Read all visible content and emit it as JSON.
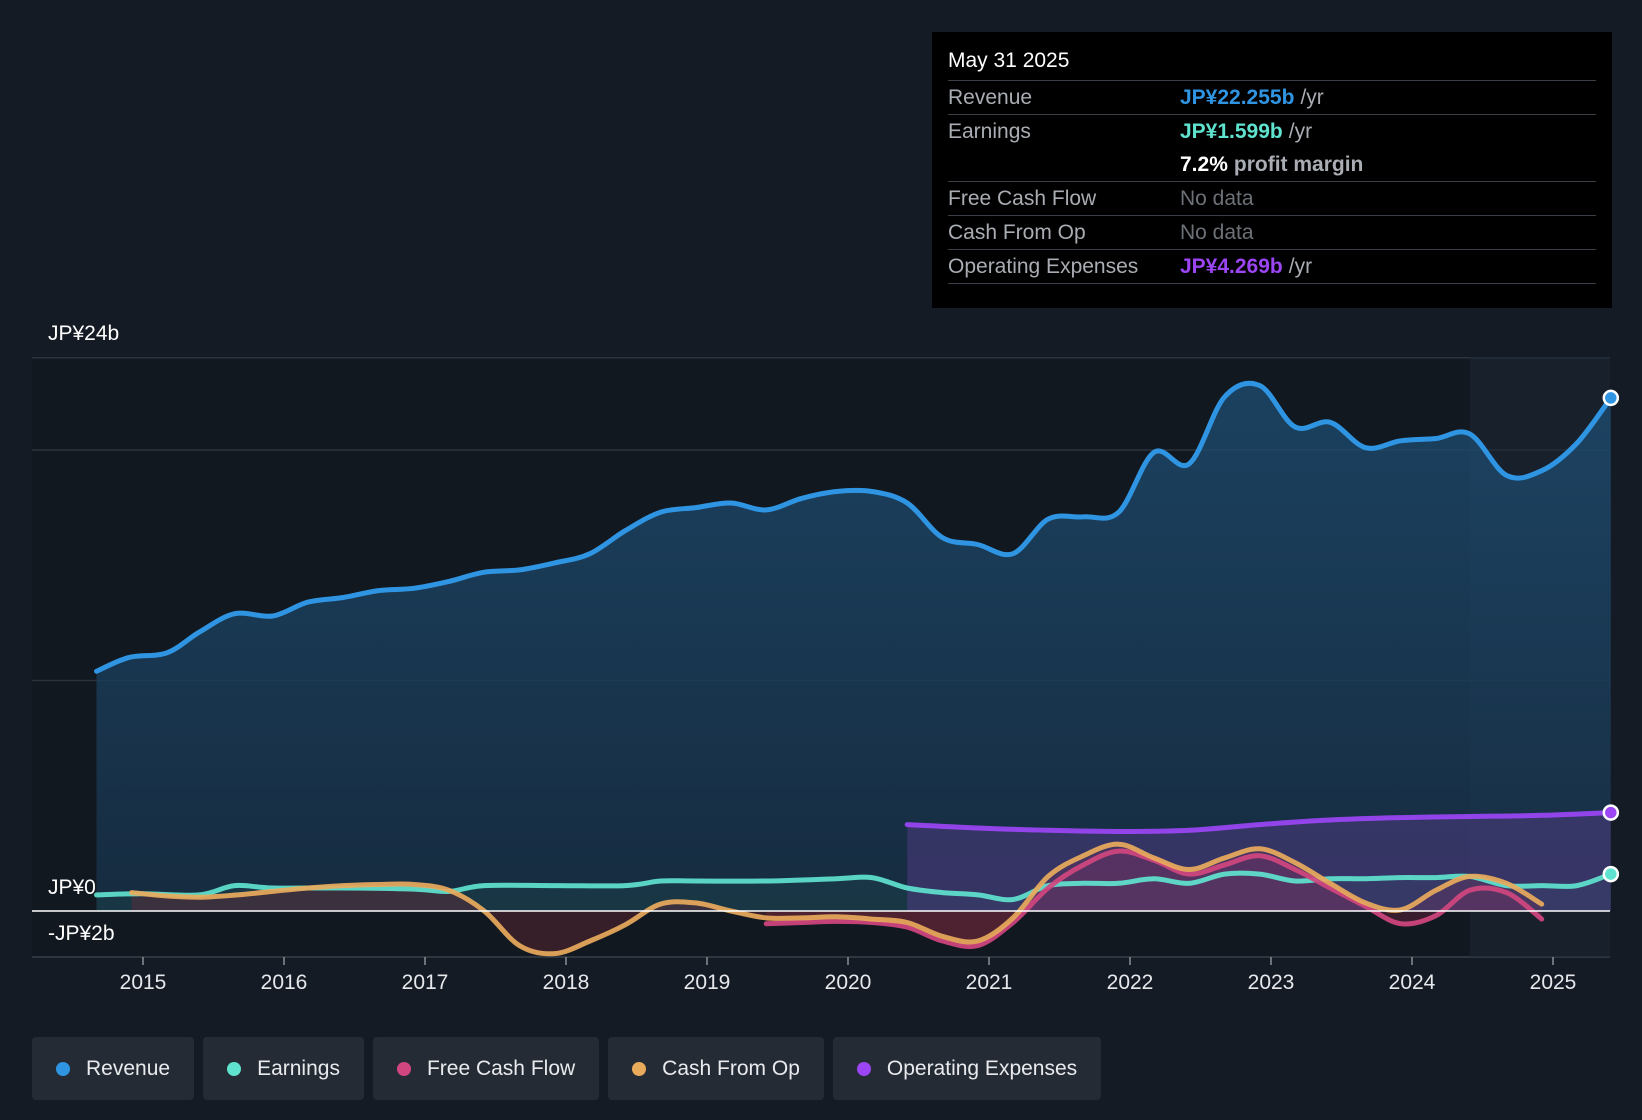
{
  "chart_data": {
    "type": "area",
    "x_ticks": [
      "2015",
      "2016",
      "2017",
      "2018",
      "2019",
      "2020",
      "2021",
      "2022",
      "2023",
      "2024",
      "2025"
    ],
    "y_axis_labels": {
      "top": "JP¥24b",
      "zero": "JP¥0",
      "bottom": "-JP¥2b"
    },
    "ylim": [
      -2,
      24
    ],
    "xlim": [
      2014.6,
      2025.4
    ],
    "forecast_shade_from": 2024.41,
    "colors": {
      "revenue": "#2f95e3",
      "earnings": "#5fe3cf",
      "free_cash_flow": "#d1467f",
      "cash_from_op": "#e9aa5c",
      "operating_expenses": "#9b45f5"
    },
    "series": [
      {
        "name": "Revenue",
        "key": "revenue",
        "x": [
          2014.67,
          2014.9,
          2015.17,
          2015.4,
          2015.65,
          2015.92,
          2016.17,
          2016.42,
          2016.67,
          2016.92,
          2017.17,
          2017.42,
          2017.67,
          2017.92,
          2018.17,
          2018.42,
          2018.67,
          2018.92,
          2019.17,
          2019.42,
          2019.67,
          2019.92,
          2020.17,
          2020.42,
          2020.67,
          2020.92,
          2021.17,
          2021.42,
          2021.67,
          2021.92,
          2022.17,
          2022.42,
          2022.67,
          2022.92,
          2023.17,
          2023.42,
          2023.67,
          2023.92,
          2024.17,
          2024.41,
          2024.67,
          2024.92,
          2025.17,
          2025.41
        ],
        "values": [
          10.4,
          11.0,
          11.2,
          12.1,
          12.9,
          12.8,
          13.4,
          13.6,
          13.9,
          14.0,
          14.3,
          14.7,
          14.8,
          15.1,
          15.5,
          16.5,
          17.3,
          17.5,
          17.7,
          17.4,
          17.9,
          18.2,
          18.2,
          17.7,
          16.2,
          15.9,
          15.5,
          17.0,
          17.1,
          17.3,
          19.9,
          19.4,
          22.3,
          22.8,
          21.0,
          21.2,
          20.1,
          20.4,
          20.5,
          20.7,
          18.9,
          19.1,
          20.3,
          22.26
        ]
      },
      {
        "name": "Earnings",
        "key": "earnings",
        "x": [
          2014.67,
          2015.0,
          2015.4,
          2015.65,
          2015.92,
          2016.42,
          2016.92,
          2017.17,
          2017.42,
          2017.92,
          2018.42,
          2018.67,
          2018.92,
          2019.42,
          2019.92,
          2020.17,
          2020.42,
          2020.67,
          2020.92,
          2021.17,
          2021.42,
          2021.67,
          2021.92,
          2022.17,
          2022.42,
          2022.67,
          2022.92,
          2023.17,
          2023.42,
          2023.67,
          2023.92,
          2024.17,
          2024.41,
          2024.67,
          2024.92,
          2025.17,
          2025.41
        ],
        "values": [
          0.7,
          0.75,
          0.7,
          1.1,
          1.0,
          1.0,
          0.95,
          0.85,
          1.1,
          1.1,
          1.1,
          1.3,
          1.3,
          1.3,
          1.4,
          1.45,
          1.0,
          0.8,
          0.7,
          0.5,
          1.1,
          1.2,
          1.2,
          1.4,
          1.2,
          1.6,
          1.6,
          1.3,
          1.4,
          1.4,
          1.45,
          1.45,
          1.5,
          1.1,
          1.1,
          1.1,
          1.6
        ]
      },
      {
        "name": "Free Cash Flow",
        "key": "free_cash_flow",
        "x": [
          2019.42,
          2019.67,
          2019.92,
          2020.17,
          2020.42,
          2020.67,
          2020.92,
          2021.17,
          2021.42,
          2021.67,
          2021.92,
          2022.17,
          2022.42,
          2022.67,
          2022.92,
          2023.17,
          2023.42,
          2023.67,
          2023.92,
          2024.17,
          2024.41,
          2024.67,
          2024.92
        ],
        "values": [
          -0.55,
          -0.5,
          -0.45,
          -0.5,
          -0.7,
          -1.3,
          -1.5,
          -0.5,
          1.0,
          2.0,
          2.6,
          2.2,
          1.6,
          2.0,
          2.4,
          1.8,
          1.0,
          0.2,
          -0.55,
          -0.2,
          0.9,
          0.8,
          -0.35
        ]
      },
      {
        "name": "Cash From Op",
        "key": "cash_from_op",
        "x": [
          2014.92,
          2015.17,
          2015.42,
          2015.67,
          2015.92,
          2016.17,
          2016.42,
          2016.67,
          2016.92,
          2017.17,
          2017.42,
          2017.67,
          2017.92,
          2018.17,
          2018.42,
          2018.67,
          2018.92,
          2019.17,
          2019.42,
          2019.67,
          2019.92,
          2020.17,
          2020.42,
          2020.67,
          2020.92,
          2021.17,
          2021.42,
          2021.67,
          2021.92,
          2022.17,
          2022.42,
          2022.67,
          2022.92,
          2023.17,
          2023.42,
          2023.67,
          2023.92,
          2024.17,
          2024.41,
          2024.67,
          2024.92
        ],
        "values": [
          0.8,
          0.65,
          0.6,
          0.7,
          0.85,
          1.0,
          1.1,
          1.15,
          1.15,
          0.9,
          0.0,
          -1.5,
          -1.85,
          -1.3,
          -0.6,
          0.3,
          0.35,
          0.0,
          -0.3,
          -0.3,
          -0.25,
          -0.35,
          -0.5,
          -1.1,
          -1.3,
          -0.3,
          1.5,
          2.4,
          2.9,
          2.3,
          1.8,
          2.3,
          2.7,
          2.1,
          1.2,
          0.35,
          0.05,
          0.9,
          1.5,
          1.2,
          0.3
        ]
      },
      {
        "name": "Operating Expenses",
        "key": "operating_expenses",
        "x": [
          2020.42,
          2020.92,
          2021.42,
          2021.92,
          2022.42,
          2022.92,
          2023.42,
          2023.92,
          2024.41,
          2024.92,
          2025.41
        ],
        "values": [
          3.75,
          3.6,
          3.5,
          3.45,
          3.5,
          3.75,
          3.95,
          4.05,
          4.1,
          4.15,
          4.27
        ]
      }
    ]
  },
  "tooltip": {
    "date": "May 31 2025",
    "revenue_label": "Revenue",
    "revenue_value": "JP¥22.255b",
    "revenue_unit": "/yr",
    "earnings_label": "Earnings",
    "earnings_value": "JP¥1.599b",
    "earnings_unit": "/yr",
    "margin_value": "7.2%",
    "margin_label": "profit margin",
    "fcf_label": "Free Cash Flow",
    "fcf_value": "No data",
    "cfo_label": "Cash From Op",
    "cfo_value": "No data",
    "opex_label": "Operating Expenses",
    "opex_value": "JP¥4.269b",
    "opex_unit": "/yr"
  },
  "legend": {
    "revenue": "Revenue",
    "earnings": "Earnings",
    "free_cash_flow": "Free Cash Flow",
    "cash_from_op": "Cash From Op",
    "operating_expenses": "Operating Expenses"
  }
}
